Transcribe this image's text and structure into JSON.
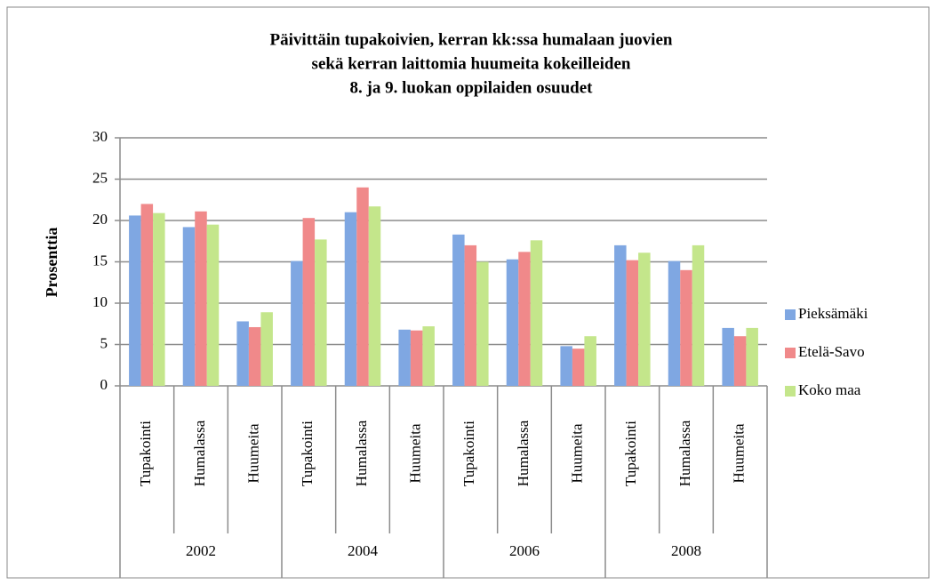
{
  "chart_data": {
    "type": "bar",
    "title": [
      "Päivittäin tupakoivien, kerran kk:ssa humalaan juovien",
      "sekä kerran laittomia huumeita kokeilleiden",
      "8. ja 9. luokan oppilaiden osuudet"
    ],
    "ylabel": "Prosenttia",
    "categories": [
      "Tupakointi",
      "Humalassa",
      "Huumeita",
      "Tupakointi",
      "Humalassa",
      "Huumeita",
      "Tupakointi",
      "Humalassa",
      "Huumeita",
      "Tupakointi",
      "Humalassa",
      "Huumeita"
    ],
    "groups": [
      "2002",
      "2004",
      "2006",
      "2008"
    ],
    "series": [
      {
        "name": "Pieksämäki",
        "color": "#7fa7e2",
        "values": [
          20.6,
          19.2,
          7.8,
          15.1,
          21,
          6.8,
          18.3,
          15.3,
          4.8,
          17,
          15.1,
          7
        ]
      },
      {
        "name": "Etelä-Savo",
        "color": "#f0898a",
        "values": [
          22,
          21.1,
          7.1,
          20.3,
          24,
          6.7,
          17,
          16.2,
          4.5,
          15.2,
          14,
          6
        ]
      },
      {
        "name": "Koko maa",
        "color": "#c4e68b",
        "values": [
          20.9,
          19.5,
          8.9,
          17.7,
          21.7,
          7.2,
          15,
          17.6,
          6,
          16.1,
          17,
          7
        ]
      }
    ],
    "ylim": [
      0,
      30
    ],
    "yticks": [
      0,
      5,
      10,
      15,
      20,
      25,
      30
    ],
    "grid": true,
    "legend": "right"
  }
}
